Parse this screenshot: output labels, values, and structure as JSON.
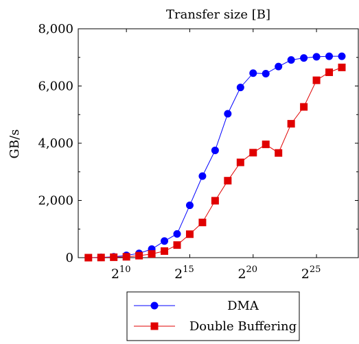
{
  "chart_data": {
    "type": "line",
    "title": "Transfer size [B]",
    "xlabel": "",
    "ylabel": "GB/s",
    "x_scale": "log2",
    "x_exponents": [
      7,
      8,
      9,
      10,
      11,
      12,
      13,
      14,
      15,
      16,
      17,
      18,
      19,
      20,
      21,
      22,
      23,
      24,
      25,
      26,
      27
    ],
    "x_tick_exponents": [
      10,
      15,
      20,
      25
    ],
    "x_tick_base": "2",
    "y_ticks": [
      "0",
      "2,000",
      "4,000",
      "6,000",
      "8,000"
    ],
    "y_tick_values": [
      0,
      2000,
      4000,
      6000,
      8000
    ],
    "ylim": [
      0,
      8000
    ],
    "xlim_exponents": [
      6.2,
      28.3
    ],
    "grid": false,
    "legend_position": "below",
    "series": [
      {
        "name": "DMA",
        "color": "#0000ff",
        "marker": "circle",
        "values": [
          0,
          10,
          30,
          80,
          150,
          300,
          580,
          830,
          1830,
          2850,
          3750,
          5030,
          5950,
          6450,
          6430,
          6680,
          6910,
          6980,
          7020,
          7040,
          7040
        ]
      },
      {
        "name": "Double Buffering",
        "color": "#e00000",
        "marker": "square",
        "values": [
          0,
          5,
          15,
          30,
          70,
          130,
          230,
          440,
          820,
          1230,
          1990,
          2690,
          3330,
          3670,
          3960,
          3660,
          4680,
          5270,
          6200,
          6480,
          6650
        ]
      }
    ]
  }
}
